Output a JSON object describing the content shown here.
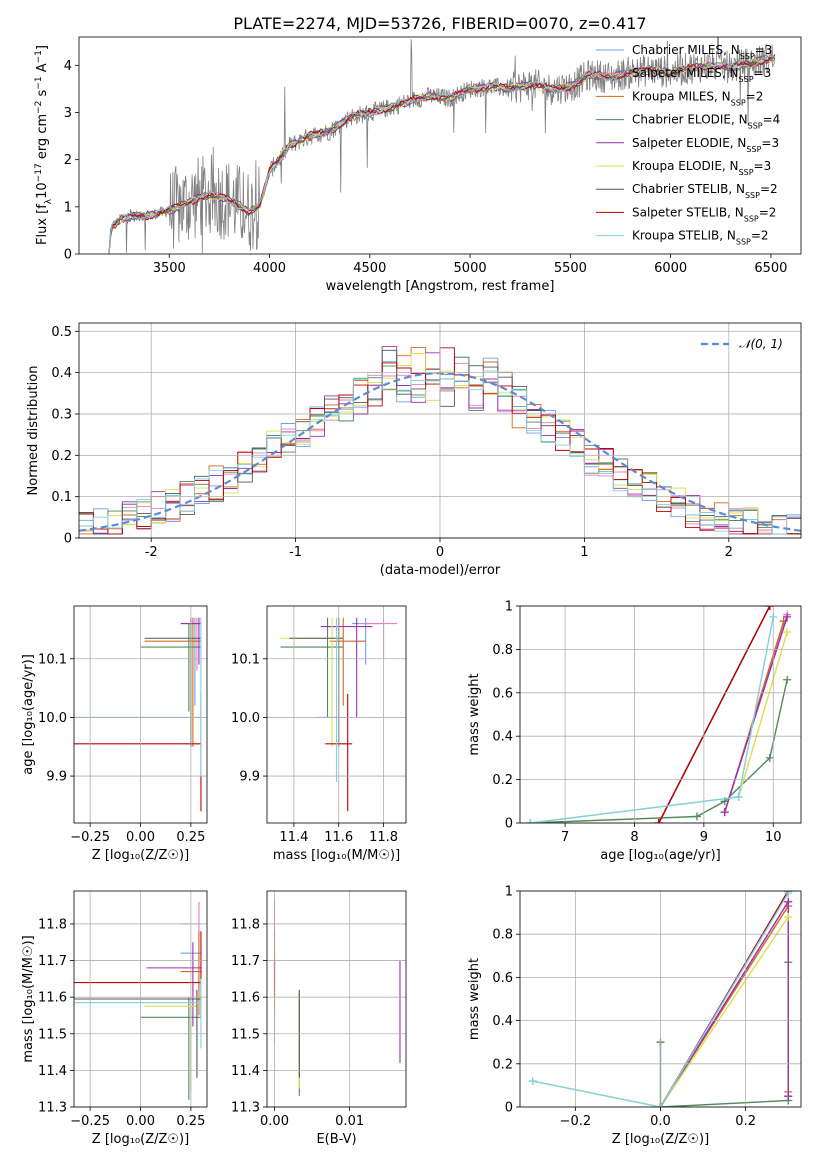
{
  "figure_title": "PLATE=2274, MJD=53726, FIBERID=0070, z=0.417",
  "colors": {
    "data": "#808080",
    "Chabrier MILES": "#6fa0e6",
    "Salpeter MILES": "#e77fc1",
    "Kroupa MILES": "#d2691e",
    "Chabrier ELODIE": "#4f8a5b",
    "Salpeter ELODIE": "#9b30b6",
    "Kroupa ELODIE": "#dede50",
    "Chabrier STELIB": "#555555",
    "Salpeter STELIB": "#c00000",
    "Kroupa STELIB": "#7fd0e0",
    "normal": "#5b8bd8"
  },
  "legend_names": [
    "Chabrier MILES",
    "Salpeter MILES",
    "Kroupa MILES",
    "Chabrier ELODIE",
    "Salpeter ELODIE",
    "Kroupa ELODIE",
    "Chabrier STELIB",
    "Salpeter STELIB",
    "Kroupa STELIB"
  ],
  "chart_data": [
    {
      "id": "spectrum",
      "type": "line",
      "xlabel": "wavelength [Angstrom, rest frame]",
      "ylabel_parts": [
        "Flux [f",
        "λ",
        "10",
        "−17",
        " erg cm",
        "−2",
        " s",
        "−1",
        " A",
        "−1",
        "]"
      ],
      "xlim": [
        3050,
        6650
      ],
      "ylim": [
        0,
        4.6
      ],
      "xticks": [
        3500,
        4000,
        4500,
        5000,
        5500,
        6000,
        6500
      ],
      "yticks": [
        0,
        1,
        2,
        3,
        4
      ],
      "legend_location": "upper right",
      "legend_nssp": [
        3,
        3,
        2,
        4,
        3,
        3,
        2,
        2,
        2
      ],
      "model_continuum": [
        [
          3200,
          0.0
        ],
        [
          3210,
          0.55
        ],
        [
          3260,
          0.75
        ],
        [
          3320,
          0.8
        ],
        [
          3400,
          0.82
        ],
        [
          3480,
          0.9
        ],
        [
          3550,
          1.0
        ],
        [
          3600,
          1.1
        ],
        [
          3650,
          1.2
        ],
        [
          3700,
          1.25
        ],
        [
          3800,
          1.15
        ],
        [
          3900,
          0.9
        ],
        [
          3950,
          1.0
        ],
        [
          4000,
          1.75
        ],
        [
          4100,
          2.3
        ],
        [
          4200,
          2.5
        ],
        [
          4300,
          2.6
        ],
        [
          4400,
          2.9
        ],
        [
          4500,
          3.0
        ],
        [
          4600,
          3.1
        ],
        [
          4700,
          3.25
        ],
        [
          4800,
          3.35
        ],
        [
          4900,
          3.3
        ],
        [
          5000,
          3.5
        ],
        [
          5100,
          3.55
        ],
        [
          5200,
          3.5
        ],
        [
          5300,
          3.6
        ],
        [
          5400,
          3.5
        ],
        [
          5500,
          3.55
        ],
        [
          5600,
          3.8
        ],
        [
          5700,
          3.75
        ],
        [
          5800,
          3.85
        ],
        [
          5900,
          3.9
        ],
        [
          6000,
          3.85
        ],
        [
          6100,
          3.95
        ],
        [
          6200,
          4.0
        ],
        [
          6300,
          3.95
        ],
        [
          6400,
          4.05
        ],
        [
          6500,
          4.15
        ]
      ]
    },
    {
      "id": "residual_hist",
      "type": "line",
      "xlabel": "(data-model)/error",
      "ylabel": "Normed distribution",
      "xlim": [
        -2.5,
        2.5
      ],
      "ylim": [
        0,
        0.52
      ],
      "xticks": [
        -2,
        -1,
        0,
        1,
        2
      ],
      "yticks": [
        0.0,
        0.1,
        0.2,
        0.3,
        0.4,
        0.5
      ],
      "legend": "𝒩(0, 1)",
      "legend_location": "upper right",
      "bin_width": 0.1,
      "normal_mean": 0,
      "normal_sigma": 1
    },
    {
      "id": "age_vs_Z",
      "type": "scatter",
      "xlabel": "Z [log₁₀(Z/Z☉)]",
      "ylabel": "age  [log₁₀(age/yr)]",
      "xlim": [
        -0.33,
        0.33
      ],
      "ylim": [
        9.82,
        10.19
      ],
      "xticks": [
        -0.25,
        0.0,
        0.25
      ],
      "xtick_labels": [
        "−0.25",
        "0.00",
        "0.25"
      ],
      "yticks": [
        9.9,
        10.0,
        10.1
      ],
      "yticks_labels": [
        "9.9",
        "10.0",
        "10.1"
      ],
      "crosses": [
        {
          "model": "Chabrier MILES",
          "x": [
            0.22,
            0.3
          ],
          "y": [
            10.02,
            10.17
          ],
          "cx": 0.27,
          "cy": 10.16
        },
        {
          "model": "Salpeter MILES",
          "x": [
            0.2,
            0.3
          ],
          "y": [
            10.08,
            10.17
          ],
          "cx": 0.28,
          "cy": 10.16
        },
        {
          "model": "Kroupa MILES",
          "x": [
            0.02,
            0.3
          ],
          "y": [
            9.95,
            10.17
          ],
          "cx": 0.26,
          "cy": 10.13
        },
        {
          "model": "Chabrier ELODIE",
          "x": [
            0.0,
            0.3
          ],
          "y": [
            10.01,
            10.16
          ],
          "cx": 0.24,
          "cy": 10.12
        },
        {
          "model": "Salpeter ELODIE",
          "x": [
            0.2,
            0.3
          ],
          "y": [
            10.09,
            10.17
          ],
          "cx": 0.29,
          "cy": 10.16
        },
        {
          "model": "Kroupa ELODIE",
          "x": [
            -0.33,
            0.3
          ],
          "y": [
            9.95,
            10.17
          ],
          "cx": 0.25,
          "cy": 10.0
        },
        {
          "model": "Chabrier STELIB",
          "x": [
            0.02,
            0.3
          ],
          "y": [
            9.95,
            10.17
          ],
          "cx": 0.25,
          "cy": 10.135
        },
        {
          "model": "Salpeter STELIB",
          "x": [
            -0.33,
            0.3
          ],
          "y": [
            9.84,
            10.04
          ],
          "cx": 0.3,
          "cy": 9.955
        },
        {
          "model": "Kroupa STELIB",
          "x": [
            -0.33,
            0.3
          ],
          "y": [
            9.9,
            10.17
          ],
          "cx": 0.3,
          "cy": 10.0
        }
      ]
    },
    {
      "id": "age_vs_mass",
      "type": "scatter",
      "xlabel": "mass [log₁₀(M/M☉)]",
      "ylabel": "",
      "xlim": [
        11.28,
        11.9
      ],
      "ylim": [
        9.82,
        10.19
      ],
      "xticks": [
        11.4,
        11.6,
        11.8
      ],
      "yticks": [
        9.9,
        10.0,
        10.1
      ],
      "yticks_labels": [
        "9.9",
        "10.0",
        "10.1"
      ],
      "crosses": [
        {
          "model": "Chabrier MILES",
          "x": [
            11.66,
            11.79
          ],
          "y": [
            10.09,
            10.17
          ],
          "cx": 11.72,
          "cy": 10.16
        },
        {
          "model": "Salpeter MILES",
          "x": [
            11.7,
            11.86
          ],
          "y": [
            10.1,
            10.17
          ],
          "cx": 11.8,
          "cy": 10.16
        },
        {
          "model": "Kroupa MILES",
          "x": [
            11.56,
            11.72
          ],
          "y": [
            10.02,
            10.17
          ],
          "cx": 11.62,
          "cy": 10.13
        },
        {
          "model": "Chabrier ELODIE",
          "x": [
            11.34,
            11.62
          ],
          "y": [
            10.0,
            10.17
          ],
          "cx": 11.55,
          "cy": 10.12
        },
        {
          "model": "Salpeter ELODIE",
          "x": [
            11.52,
            11.75
          ],
          "y": [
            10.0,
            10.17
          ],
          "cx": 11.68,
          "cy": 10.155
        },
        {
          "model": "Kroupa ELODIE",
          "x": [
            11.34,
            11.62
          ],
          "y": [
            9.95,
            10.17
          ],
          "cx": 11.57,
          "cy": 10.135
        },
        {
          "model": "Chabrier STELIB",
          "x": [
            11.38,
            11.62
          ],
          "y": [
            9.95,
            10.17
          ],
          "cx": 11.6,
          "cy": 10.135
        },
        {
          "model": "Salpeter STELIB",
          "x": [
            11.54,
            11.66
          ],
          "y": [
            9.84,
            10.04
          ],
          "cx": 11.64,
          "cy": 9.955
        },
        {
          "model": "Kroupa STELIB",
          "x": [
            11.5,
            11.62
          ],
          "y": [
            9.89,
            10.17
          ],
          "cx": 11.59,
          "cy": 10.0
        }
      ]
    },
    {
      "id": "massweight_vs_age",
      "type": "line",
      "xlabel": "age  [log₁₀(age/yr)]",
      "ylabel": "mass weight",
      "xlim": [
        6.35,
        10.4
      ],
      "ylim": [
        0,
        1.0
      ],
      "xticks": [
        7,
        8,
        9,
        10
      ],
      "yticks": [
        0.0,
        0.2,
        0.4,
        0.6,
        0.8,
        1.0
      ],
      "series": [
        {
          "model": "Chabrier MILES",
          "x": [
            8.35,
            9.95
          ],
          "y": [
            0.0,
            1.0
          ]
        },
        {
          "model": "Salpeter MILES",
          "x": [
            9.3,
            10.2
          ],
          "y": [
            0.05,
            0.96
          ]
        },
        {
          "model": "Kroupa MILES",
          "x": [
            9.3,
            10.15
          ],
          "y": [
            0.05,
            0.93
          ]
        },
        {
          "model": "Chabrier ELODIE",
          "x": [
            6.5,
            8.9,
            9.3,
            9.95,
            10.2
          ],
          "y": [
            0.0,
            0.03,
            0.1,
            0.3,
            0.66
          ]
        },
        {
          "model": "Salpeter ELODIE",
          "x": [
            9.3,
            10.2
          ],
          "y": [
            0.05,
            0.95
          ]
        },
        {
          "model": "Kroupa ELODIE",
          "x": [
            6.5,
            9.5,
            10.2
          ],
          "y": [
            0.0,
            0.12,
            0.88
          ]
        },
        {
          "model": "Chabrier STELIB",
          "x": [
            8.35,
            9.95
          ],
          "y": [
            0.0,
            1.0
          ]
        },
        {
          "model": "Salpeter STELIB",
          "x": [
            8.35,
            9.95
          ],
          "y": [
            0.0,
            1.0
          ]
        },
        {
          "model": "Kroupa STELIB",
          "x": [
            6.5,
            9.5,
            10.0
          ],
          "y": [
            0.0,
            0.12,
            0.95
          ]
        }
      ]
    },
    {
      "id": "mass_vs_Z",
      "type": "scatter",
      "xlabel": "Z [log₁₀(Z/Z☉)]",
      "ylabel": "mass [log₁₀(M/M☉)]",
      "xlim": [
        -0.33,
        0.33
      ],
      "ylim": [
        11.3,
        11.89
      ],
      "xticks": [
        -0.25,
        0.0,
        0.25
      ],
      "xtick_labels": [
        "−0.25",
        "0.00",
        "0.25"
      ],
      "yticks": [
        11.3,
        11.4,
        11.5,
        11.6,
        11.7,
        11.8
      ],
      "crosses": [
        {
          "model": "Chabrier MILES",
          "x": [
            0.2,
            0.3
          ],
          "y": [
            11.62,
            11.74
          ],
          "cx": 0.29,
          "cy": 11.72
        },
        {
          "model": "Salpeter MILES",
          "x": [
            0.2,
            0.3
          ],
          "y": [
            11.75,
            11.86
          ],
          "cx": 0.29,
          "cy": 11.8
        },
        {
          "model": "Kroupa MILES",
          "x": [
            0.2,
            0.3
          ],
          "y": [
            11.55,
            11.78
          ],
          "cx": 0.29,
          "cy": 11.67
        },
        {
          "model": "Chabrier ELODIE",
          "x": [
            0.0,
            0.3
          ],
          "y": [
            11.32,
            11.6
          ],
          "cx": 0.24,
          "cy": 11.545
        },
        {
          "model": "Salpeter ELODIE",
          "x": [
            0.03,
            0.3
          ],
          "y": [
            11.52,
            11.75
          ],
          "cx": 0.26,
          "cy": 11.68
        },
        {
          "model": "Kroupa ELODIE",
          "x": [
            0.02,
            0.3
          ],
          "y": [
            11.34,
            11.6
          ],
          "cx": 0.25,
          "cy": 11.575
        },
        {
          "model": "Chabrier STELIB",
          "x": [
            -0.33,
            0.3
          ],
          "y": [
            11.38,
            11.62
          ],
          "cx": 0.28,
          "cy": 11.595
        },
        {
          "model": "Salpeter STELIB",
          "x": [
            -0.33,
            0.3
          ],
          "y": [
            11.55,
            11.78
          ],
          "cx": 0.3,
          "cy": 11.64
        },
        {
          "model": "Kroupa STELIB",
          "x": [
            -0.33,
            0.3
          ],
          "y": [
            11.46,
            11.65
          ],
          "cx": 0.3,
          "cy": 11.585
        }
      ]
    },
    {
      "id": "mass_vs_EBV",
      "type": "scatter",
      "xlabel": "E(B-V)",
      "ylabel": "",
      "xlim": [
        -0.001,
        0.0175
      ],
      "ylim": [
        11.3,
        11.89
      ],
      "xticks": [
        0.0,
        0.01
      ],
      "xtick_labels": [
        "0.00",
        "0.01"
      ],
      "yticks": [
        11.3,
        11.4,
        11.5,
        11.6,
        11.7,
        11.8
      ],
      "crosses": [
        {
          "model": "Chabrier MILES",
          "x": [
            0.0,
            0.0
          ],
          "y": [
            11.62,
            11.74
          ],
          "cx": 0.0,
          "cy": 11.72
        },
        {
          "model": "Salpeter MILES",
          "x": [
            0.0,
            0.0
          ],
          "y": [
            11.75,
            11.87
          ],
          "cx": 0.0,
          "cy": 11.8
        },
        {
          "model": "Kroupa MILES",
          "x": [
            0.0,
            0.0
          ],
          "y": [
            11.55,
            11.78
          ],
          "cx": 0.0,
          "cy": 11.67
        },
        {
          "model": "Chabrier ELODIE",
          "x": [
            0.0033,
            0.0033
          ],
          "y": [
            11.33,
            11.61
          ],
          "cx": 0.0033,
          "cy": 11.545
        },
        {
          "model": "Salpeter ELODIE",
          "x": [
            0.0167,
            0.0167
          ],
          "y": [
            11.42,
            11.7
          ],
          "cx": 0.0167,
          "cy": 11.68
        },
        {
          "model": "Kroupa ELODIE",
          "x": [
            0.0033,
            0.0033
          ],
          "y": [
            11.35,
            11.6
          ],
          "cx": 0.0033,
          "cy": 11.575
        },
        {
          "model": "Chabrier STELIB",
          "x": [
            0.0033,
            0.0033
          ],
          "y": [
            11.38,
            11.62
          ],
          "cx": 0.0033,
          "cy": 11.595
        },
        {
          "model": "Salpeter STELIB",
          "x": [
            0.0,
            0.0
          ],
          "y": [
            11.6,
            11.7
          ],
          "cx": 0.0,
          "cy": 11.64
        },
        {
          "model": "Kroupa STELIB",
          "x": [
            0.0,
            0.0
          ],
          "y": [
            11.47,
            11.56
          ],
          "cx": 0.0,
          "cy": 11.52
        }
      ]
    },
    {
      "id": "massweight_vs_Z",
      "type": "line",
      "xlabel": "Z [log₁₀(Z/Z☉)]",
      "ylabel": "mass weight",
      "xlim": [
        -0.33,
        0.33
      ],
      "ylim": [
        0,
        1.0
      ],
      "xticks": [
        -0.2,
        0.0,
        0.2
      ],
      "xtick_labels": [
        "−0.2",
        "0.0",
        "0.2"
      ],
      "yticks": [
        0.0,
        0.2,
        0.4,
        0.6,
        0.8,
        1.0
      ],
      "series": [
        {
          "model": "Chabrier MILES",
          "x": [
            0.0,
            0.3
          ],
          "y": [
            0.0,
            1.0
          ]
        },
        {
          "model": "Salpeter MILES",
          "x": [
            0.0,
            0.3,
            0.3
          ],
          "y": [
            0.0,
            0.95,
            0.05
          ]
        },
        {
          "model": "Kroupa MILES",
          "x": [
            0.0,
            0.3,
            0.3
          ],
          "y": [
            0.0,
            0.93,
            0.07
          ]
        },
        {
          "model": "Chabrier ELODIE",
          "x": [
            0.0,
            0.0,
            0.3,
            0.3
          ],
          "y": [
            0.3,
            0.0,
            0.03,
            0.67
          ]
        },
        {
          "model": "Salpeter ELODIE",
          "x": [
            0.0,
            0.3,
            0.3
          ],
          "y": [
            0.0,
            0.95,
            0.05
          ]
        },
        {
          "model": "Kroupa ELODIE",
          "x": [
            -0.3,
            0.0,
            0.3
          ],
          "y": [
            0.12,
            0.0,
            0.88
          ]
        },
        {
          "model": "Chabrier STELIB",
          "x": [
            0.0,
            0.3
          ],
          "y": [
            0.0,
            1.0
          ]
        },
        {
          "model": "Salpeter STELIB",
          "x": [
            0.0,
            0.3
          ],
          "y": [
            0.0,
            1.0
          ]
        },
        {
          "model": "Kroupa STELIB",
          "x": [
            -0.3,
            0.0,
            0.3
          ],
          "y": [
            0.12,
            0.0,
            0.99
          ]
        }
      ]
    }
  ]
}
